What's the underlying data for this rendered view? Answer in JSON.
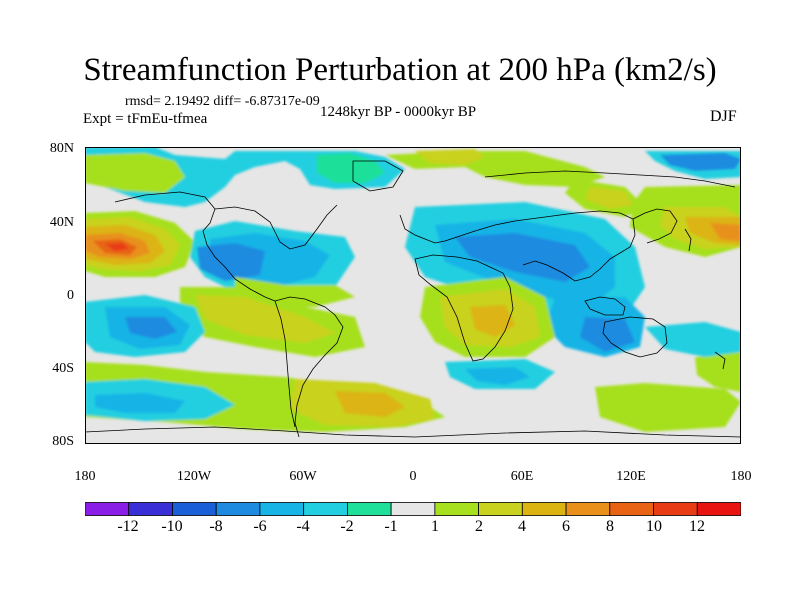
{
  "title": "Streamfunction Perturbation at 200 hPa (km2/s)",
  "stats": "rmsd= 2.19492 diff= -6.87317e-09",
  "experiment": "Expt = tFmEu-tfmea",
  "period": "1248kyr BP - 0000kyr BP",
  "season": "DJF",
  "axes": {
    "y_ticks": [
      "80N",
      "40N",
      "0",
      "40S",
      "80S"
    ],
    "x_ticks": [
      "180",
      "120W",
      "60W",
      "0",
      "60E",
      "120E",
      "180"
    ]
  },
  "colorbar": {
    "labels": [
      "-12",
      "-10",
      "-8",
      "-6",
      "-4",
      "-2",
      "-1",
      "1",
      "2",
      "4",
      "6",
      "8",
      "10",
      "12"
    ],
    "colors": [
      "#8a1ee6",
      "#3a2fd6",
      "#1b5fd8",
      "#1e8be0",
      "#19b4e6",
      "#22cfe0",
      "#1fe09a",
      "#e6e6e6",
      "#a6e01e",
      "#c9d21e",
      "#dcb412",
      "#e8901a",
      "#e86414",
      "#e83c14",
      "#e8140f"
    ]
  },
  "colors": {
    "background": "#e6e6e6",
    "coast": "#000000"
  }
}
